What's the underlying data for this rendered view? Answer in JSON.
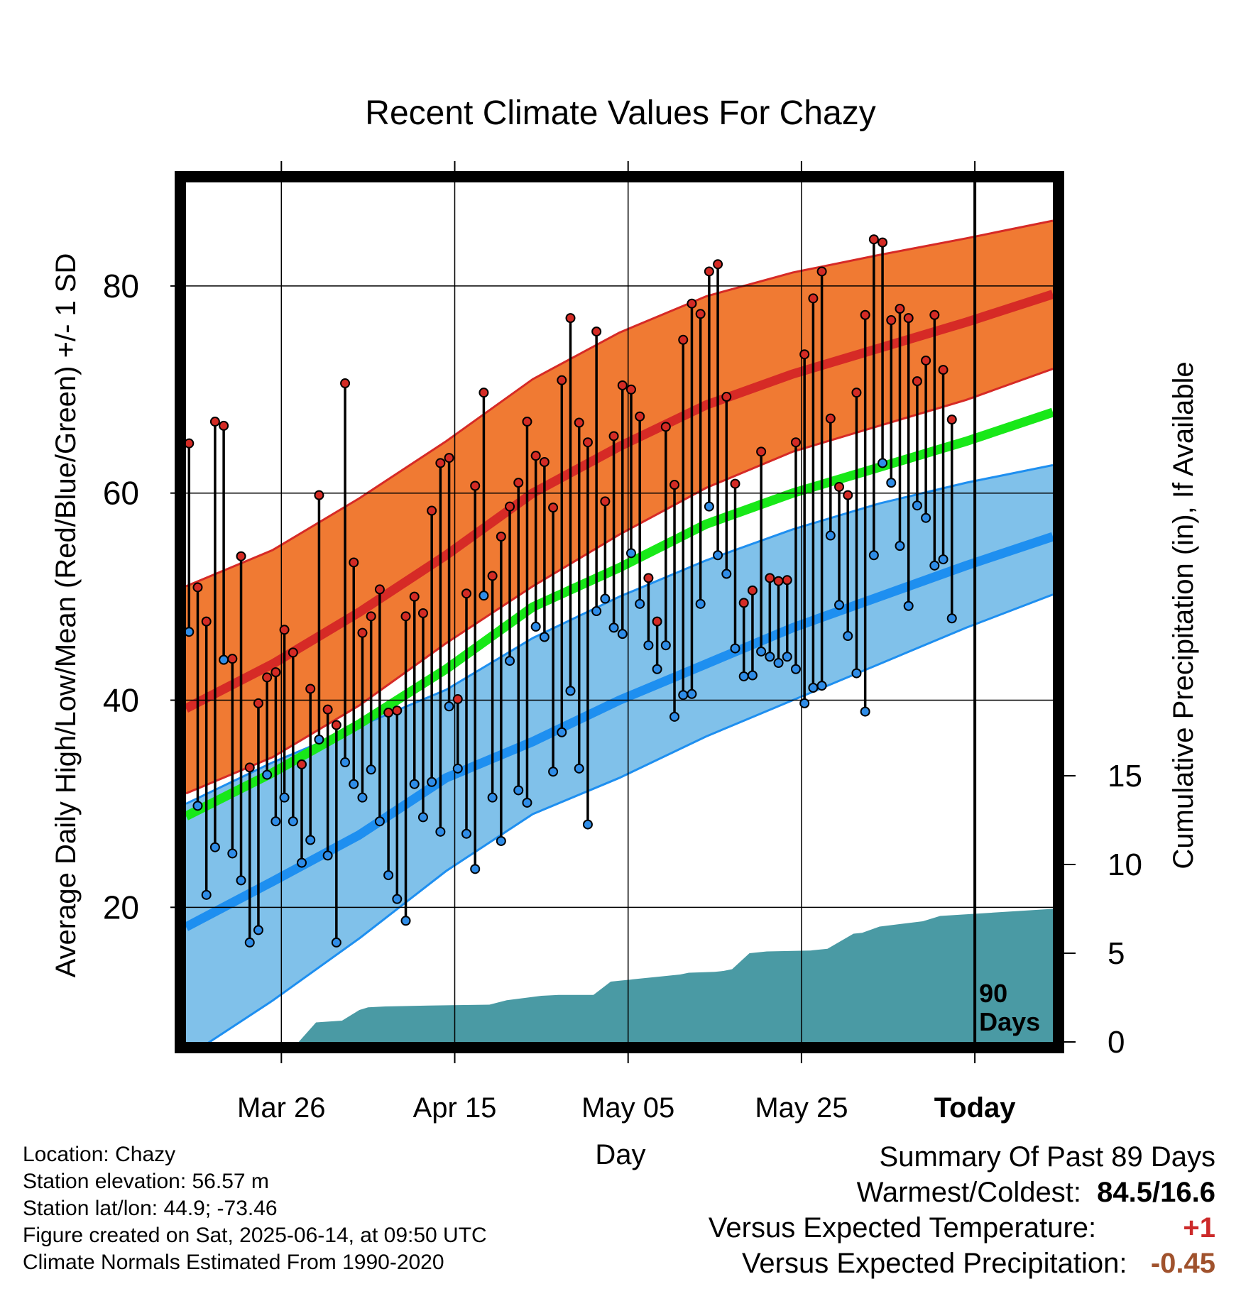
{
  "chart_data": {
    "type": "line",
    "title": "Recent Climate Values For Chazy",
    "xlabel": "Day",
    "ylabel_left": "Average Daily High/Low/Mean (Red/Blue/Green) +/- 1 SD",
    "ylabel_right": "Cumulative Precipitation (in), If Available",
    "x_axis": {
      "unit": "day",
      "range": [
        "2025-03-15",
        "2025-06-23"
      ],
      "ticks": [
        {
          "date": "2025-03-26",
          "label": "Mar 26"
        },
        {
          "date": "2025-04-15",
          "label": "Apr 15"
        },
        {
          "date": "2025-05-05",
          "label": "May 05"
        },
        {
          "date": "2025-05-25",
          "label": "May 25"
        },
        {
          "date": "2025-06-14",
          "label": "Today"
        }
      ]
    },
    "y_left": {
      "range": [
        7,
        90
      ],
      "major_ticks": [
        20,
        40,
        60,
        80
      ],
      "minor_ticks": [
        10,
        30,
        50,
        70
      ]
    },
    "y_right": {
      "range": [
        0,
        20
      ],
      "ticks": [
        0,
        5,
        10,
        15
      ]
    },
    "today_marker": {
      "date": "2025-06-14",
      "label_line1": "90",
      "label_line2": "Days"
    },
    "colors": {
      "high_band": "#f07a33",
      "high_band_edge": "#d62a26",
      "high_mean": "#d62a26",
      "low_band": "#80c1ea",
      "low_band_edge": "#1e8ff0",
      "low_mean": "#1e8ff0",
      "mean_normal": "#18e818",
      "precip": "#4a9aa4",
      "high_dot": "#d42b25",
      "low_dot": "#2f8de8"
    },
    "normals": {
      "dates": [
        "2025-03-15",
        "2025-03-25",
        "2025-04-04",
        "2025-04-14",
        "2025-04-24",
        "2025-05-04",
        "2025-05-14",
        "2025-05-24",
        "2025-06-03",
        "2025-06-13",
        "2025-06-23"
      ],
      "high_mean": [
        39.2,
        43.5,
        48.5,
        54.0,
        60.0,
        64.5,
        68.5,
        71.5,
        74.0,
        76.5,
        79.2
      ],
      "high_upper": [
        51.0,
        54.5,
        59.5,
        65.0,
        71.0,
        75.5,
        79.0,
        81.3,
        83.0,
        84.6,
        86.3
      ],
      "high_lower": [
        31.0,
        34.5,
        39.5,
        45.5,
        51.0,
        56.0,
        60.5,
        64.0,
        66.5,
        69.0,
        72.0
      ],
      "mean_normal": [
        28.8,
        33.0,
        37.7,
        43.0,
        49.0,
        52.8,
        57.0,
        60.0,
        62.5,
        65.0,
        67.8
      ],
      "low_mean": [
        18.1,
        22.5,
        27.0,
        32.5,
        36.0,
        40.0,
        43.5,
        47.0,
        50.0,
        53.0,
        55.8
      ],
      "low_upper": [
        30.0,
        34.0,
        37.5,
        41.0,
        46.0,
        50.0,
        53.5,
        56.5,
        59.0,
        61.0,
        62.7
      ],
      "low_lower": [
        5.5,
        11.0,
        17.0,
        23.5,
        29.0,
        32.5,
        36.5,
        40.0,
        43.5,
        47.0,
        50.2
      ]
    },
    "daily": {
      "start_date": "2025-03-15",
      "high": [
        64.8,
        50.9,
        47.6,
        66.9,
        66.5,
        44.0,
        53.9,
        33.5,
        39.7,
        42.2,
        42.7,
        46.8,
        44.6,
        33.8,
        41.1,
        59.8,
        39.1,
        37.6,
        70.6,
        53.3,
        46.5,
        48.1,
        50.7,
        38.8,
        39.0,
        48.1,
        50.0,
        48.4,
        58.3,
        62.9,
        63.4,
        40.1,
        50.3,
        60.7,
        69.7,
        52.0,
        55.8,
        58.7,
        61.0,
        66.9,
        63.6,
        63.0,
        58.6,
        70.9,
        76.9,
        66.8,
        64.9,
        75.6,
        59.2,
        65.5,
        70.4,
        70.0,
        67.4,
        51.8,
        47.6,
        66.4,
        60.8,
        74.8,
        78.3,
        77.3,
        81.4,
        82.1,
        69.3,
        60.9,
        49.4,
        50.6,
        64.0,
        51.8,
        51.5,
        51.6,
        64.9,
        73.4,
        78.8,
        81.4,
        67.2,
        60.6,
        59.8,
        69.7,
        77.2,
        84.5,
        84.2,
        76.7,
        77.8,
        76.9,
        70.8,
        72.8,
        77.2,
        71.9,
        67.1
      ],
      "low": [
        46.6,
        29.8,
        21.2,
        25.8,
        43.9,
        25.2,
        22.6,
        16.6,
        17.8,
        32.8,
        28.3,
        30.6,
        28.3,
        24.3,
        26.5,
        36.2,
        25.0,
        16.6,
        34.0,
        31.9,
        30.6,
        33.3,
        28.3,
        23.1,
        20.8,
        18.7,
        31.9,
        28.7,
        32.1,
        27.3,
        39.4,
        33.4,
        27.1,
        23.7,
        50.1,
        30.6,
        26.4,
        43.8,
        31.3,
        30.1,
        47.1,
        46.1,
        33.1,
        36.9,
        40.9,
        33.4,
        28.0,
        48.6,
        49.8,
        47.0,
        46.4,
        54.2,
        49.3,
        45.3,
        43.0,
        45.3,
        38.4,
        40.5,
        40.6,
        49.3,
        58.7,
        54.0,
        52.2,
        45.0,
        42.3,
        42.4,
        44.7,
        44.2,
        43.6,
        44.2,
        43.0,
        39.7,
        41.2,
        41.4,
        55.9,
        49.2,
        46.2,
        42.6,
        38.9,
        54.0,
        62.9,
        61.0,
        54.9,
        49.1,
        58.8,
        57.6,
        53.0,
        53.6,
        47.9
      ]
    },
    "precip_cumulative": {
      "dates": [
        "2025-03-15",
        "2025-03-28",
        "2025-03-30",
        "2025-04-02",
        "2025-04-04",
        "2025-04-05",
        "2025-04-07",
        "2025-04-12",
        "2025-04-19",
        "2025-04-21",
        "2025-04-25",
        "2025-04-27",
        "2025-05-01",
        "2025-05-03",
        "2025-05-09",
        "2025-05-11",
        "2025-05-12",
        "2025-05-15",
        "2025-05-16",
        "2025-05-17",
        "2025-05-19",
        "2025-05-21",
        "2025-05-26",
        "2025-05-28",
        "2025-05-31",
        "2025-06-01",
        "2025-06-03",
        "2025-06-08",
        "2025-06-10",
        "2025-06-23"
      ],
      "values": [
        0,
        0,
        1.1,
        1.2,
        1.8,
        1.95,
        2.0,
        2.05,
        2.1,
        2.35,
        2.6,
        2.65,
        2.65,
        3.4,
        3.7,
        3.8,
        3.9,
        3.95,
        4.0,
        4.1,
        5.0,
        5.1,
        5.15,
        5.25,
        6.1,
        6.15,
        6.5,
        6.8,
        7.1,
        7.5
      ]
    }
  },
  "info": {
    "location": "Location: Chazy",
    "elevation": "Station elevation: 56.57 m",
    "latlon": "Station lat/lon: 44.9; -73.46",
    "created": "Figure created on Sat, 2025-06-14, at 09:50 UTC",
    "normals": "Climate Normals Estimated From 1990-2020"
  },
  "summary": {
    "title": "Summary Of Past 89 Days",
    "warm_cold_label": "Warmest/Coldest:",
    "warm_cold_value": "84.5/16.6",
    "temp_label": "Versus Expected Temperature:",
    "temp_value": "+1",
    "temp_color": "#cc2a2a",
    "precip_label": "Versus Expected Precipitation:",
    "precip_value": "-0.45",
    "precip_color": "#a0522d"
  }
}
